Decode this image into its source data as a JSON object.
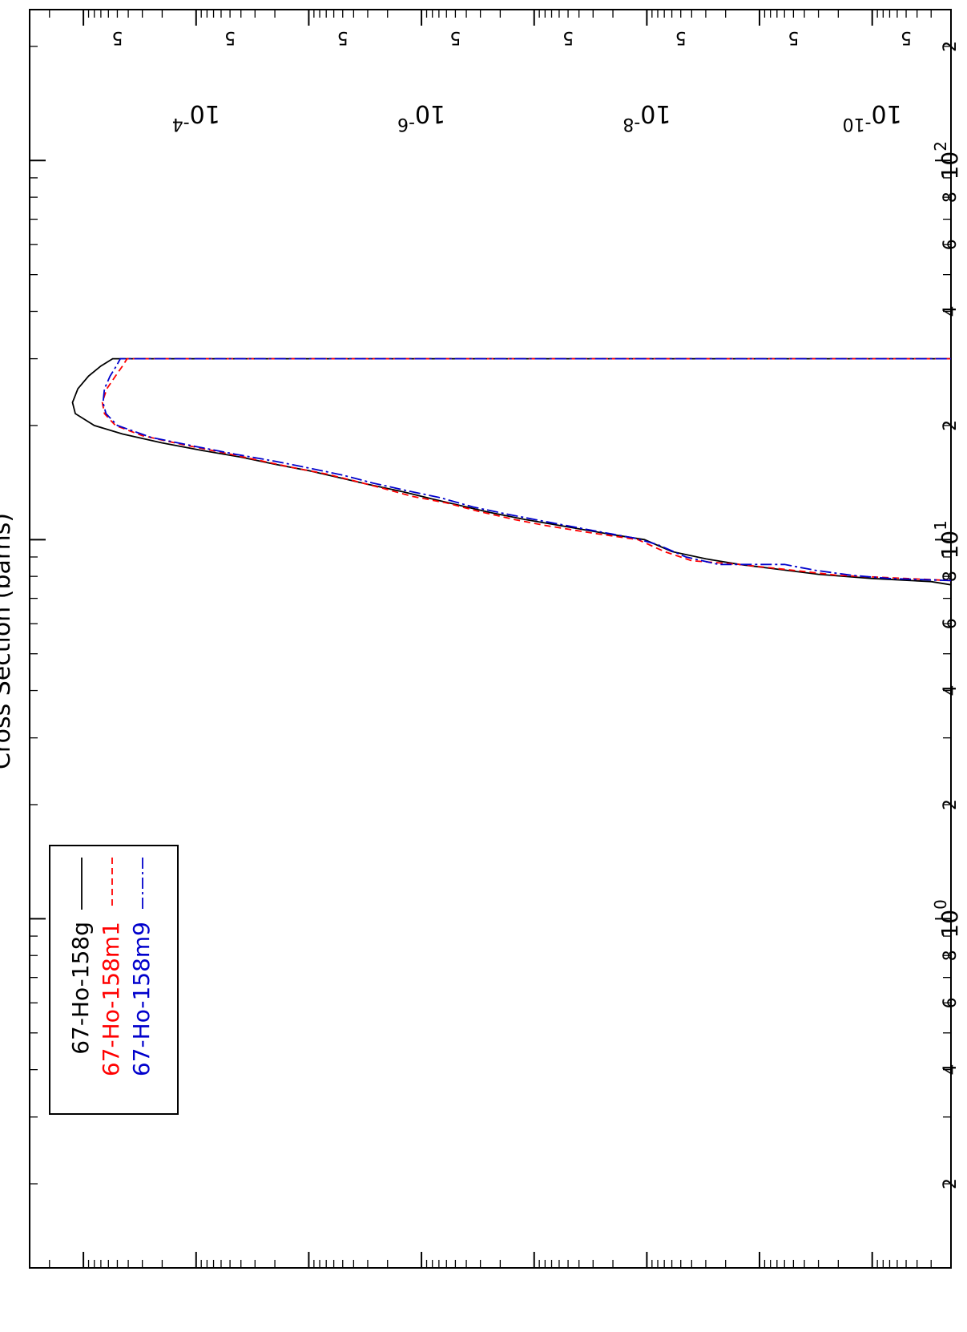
{
  "chart_data": {
    "type": "line",
    "title": "",
    "ylabel": "Cross Section (barns)",
    "xlabel": "",
    "x_scale": "log",
    "y_scale": "log",
    "xlim": [
      0.12,
      250
    ],
    "ylim": [
      2e-11,
      0.003
    ],
    "x_major_ticks": [
      {
        "value": 1,
        "base": "10",
        "exp": "0"
      },
      {
        "value": 10,
        "base": "10",
        "exp": "1"
      },
      {
        "value": 100,
        "base": "10",
        "exp": "2"
      }
    ],
    "x_minor_labels": [
      {
        "value": 0.2,
        "label": "2"
      },
      {
        "value": 0.4,
        "label": "4"
      },
      {
        "value": 0.6,
        "label": "6"
      },
      {
        "value": 0.8,
        "label": "8"
      },
      {
        "value": 2,
        "label": "2"
      },
      {
        "value": 4,
        "label": "4"
      },
      {
        "value": 6,
        "label": "6"
      },
      {
        "value": 8,
        "label": "8"
      },
      {
        "value": 20,
        "label": "2"
      },
      {
        "value": 40,
        "label": "4"
      },
      {
        "value": 60,
        "label": "6"
      },
      {
        "value": 80,
        "label": "8"
      },
      {
        "value": 200,
        "label": "2"
      }
    ],
    "y_major_labels": [
      {
        "value": 0.0001,
        "base": "10",
        "exp": "-4"
      },
      {
        "value": 1e-06,
        "base": "10",
        "exp": "-6"
      },
      {
        "value": 1e-08,
        "base": "10",
        "exp": "-8"
      },
      {
        "value": 1e-10,
        "base": "10",
        "exp": "-10"
      }
    ],
    "y_minor_labels": [
      {
        "value": 0.0005,
        "label": "5"
      },
      {
        "value": 5e-05,
        "label": "5"
      },
      {
        "value": 5e-06,
        "label": "5"
      },
      {
        "value": 5e-07,
        "label": "5"
      },
      {
        "value": 5e-08,
        "label": "5"
      },
      {
        "value": 5e-09,
        "label": "5"
      },
      {
        "value": 5e-10,
        "label": "5"
      },
      {
        "value": 5e-11,
        "label": "5"
      }
    ],
    "legend_position": "top-left",
    "series": [
      {
        "name": "67-Ho-158g",
        "color": "#000000",
        "dash": "solid",
        "points": [
          [
            7.6,
            2e-11
          ],
          [
            7.75,
            3e-11
          ],
          [
            7.9,
            1e-10
          ],
          [
            8.1,
            3e-10
          ],
          [
            8.4,
            8e-10
          ],
          [
            8.6,
            1.5e-09
          ],
          [
            8.9,
            3e-09
          ],
          [
            9.3,
            6e-09
          ],
          [
            10.0,
            1.05e-08
          ],
          [
            10.3,
            2e-08
          ],
          [
            10.8,
            5e-08
          ],
          [
            11.3,
            1.2e-07
          ],
          [
            11.8,
            2.5e-07
          ],
          [
            12.2,
            4e-07
          ],
          [
            12.8,
            8e-07
          ],
          [
            13.4,
            1.5e-06
          ],
          [
            14.0,
            3e-06
          ],
          [
            14.6,
            5.5e-06
          ],
          [
            15.2,
            1e-05
          ],
          [
            15.8,
            2e-05
          ],
          [
            16.5,
            4e-05
          ],
          [
            17.2,
            9e-05
          ],
          [
            18.0,
            0.0002
          ],
          [
            19.0,
            0.00045
          ],
          [
            20.0,
            0.0008
          ],
          [
            21.5,
            0.00118
          ],
          [
            23.0,
            0.00125
          ],
          [
            25.0,
            0.00112
          ],
          [
            27.0,
            0.0009
          ],
          [
            28.7,
            0.0007
          ],
          [
            30.0,
            0.00055
          ],
          [
            30.0,
            2e-11
          ]
        ]
      },
      {
        "name": "67-Ho-158m1",
        "color": "#ff0000",
        "dash": "8,5",
        "points": [
          [
            7.8,
            2e-11
          ],
          [
            7.9,
            5e-11
          ],
          [
            8.05,
            2e-10
          ],
          [
            8.3,
            5e-10
          ],
          [
            8.6,
            1.5e-09
          ],
          [
            8.8,
            4e-09
          ],
          [
            9.3,
            7e-09
          ],
          [
            10.0,
            1.2e-08
          ],
          [
            10.4,
            3e-08
          ],
          [
            10.9,
            8e-08
          ],
          [
            11.3,
            1.5e-07
          ],
          [
            11.9,
            3.2e-07
          ],
          [
            12.5,
            6e-07
          ],
          [
            13.0,
            1.2e-06
          ],
          [
            13.7,
            2.3e-06
          ],
          [
            14.3,
            4e-06
          ],
          [
            14.9,
            7e-06
          ],
          [
            15.5,
            1.4e-05
          ],
          [
            16.2,
            2.8e-05
          ],
          [
            17.0,
            6e-05
          ],
          [
            17.8,
            0.00013
          ],
          [
            18.8,
            0.0003
          ],
          [
            20.0,
            0.00052
          ],
          [
            21.5,
            0.00065
          ],
          [
            23.0,
            0.00068
          ],
          [
            25.0,
            0.00062
          ],
          [
            27.0,
            0.00052
          ],
          [
            28.7,
            0.00045
          ],
          [
            30.0,
            0.00041
          ],
          [
            30.0,
            2e-11
          ]
        ]
      },
      {
        "name": "67-Ho-158m9",
        "color": "#0000cc",
        "dash": "14,4,3,4",
        "points": [
          [
            7.8,
            2e-11
          ],
          [
            7.9,
            7e-11
          ],
          [
            8.05,
            1.5e-10
          ],
          [
            8.3,
            3.2e-10
          ],
          [
            8.6,
            6e-10
          ],
          [
            8.6,
            2.3e-09
          ],
          [
            9.0,
            4.5e-09
          ],
          [
            9.7,
            8e-09
          ],
          [
            10.1,
            1.3e-08
          ],
          [
            10.6,
            3.2e-08
          ],
          [
            11.2,
            8.5e-08
          ],
          [
            11.7,
            1.8e-07
          ],
          [
            12.2,
            3.5e-07
          ],
          [
            12.9,
            6.8e-07
          ],
          [
            13.5,
            1.4e-06
          ],
          [
            14.1,
            2.7e-06
          ],
          [
            14.8,
            5e-06
          ],
          [
            15.4,
            9.5e-06
          ],
          [
            16.1,
            2e-05
          ],
          [
            16.8,
            4.5e-05
          ],
          [
            17.6,
            0.0001
          ],
          [
            18.6,
            0.00025
          ],
          [
            20.0,
            0.0005
          ],
          [
            21.5,
            0.00063
          ],
          [
            23.0,
            0.00067
          ],
          [
            25.0,
            0.00065
          ],
          [
            27.0,
            0.00058
          ],
          [
            28.7,
            0.00051
          ],
          [
            30.0,
            0.00047
          ],
          [
            30.0,
            2e-11
          ]
        ]
      }
    ]
  }
}
